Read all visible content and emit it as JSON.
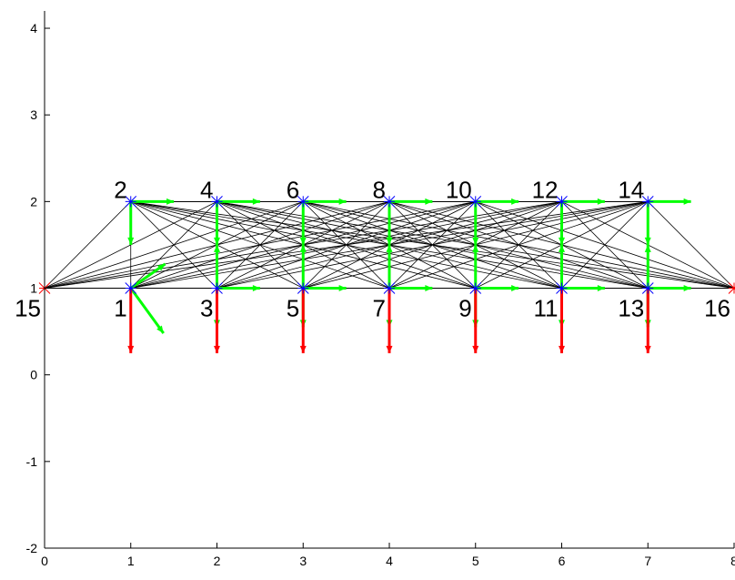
{
  "chart_data": {
    "type": "scatter",
    "title": "",
    "xlabel": "",
    "ylabel": "",
    "xlim": [
      0,
      8
    ],
    "ylim": [
      -2,
      4.2
    ],
    "xticks": [
      0,
      1,
      2,
      3,
      4,
      5,
      6,
      7,
      8
    ],
    "yticks": [
      -2,
      -1,
      0,
      1,
      2,
      3,
      4
    ],
    "xtick_labels": [
      "0",
      "1",
      "2",
      "3",
      "4",
      "5",
      "6",
      "7",
      "8"
    ],
    "ytick_labels": [
      "-2",
      "-1",
      "0",
      "1",
      "2",
      "3",
      "4"
    ],
    "grid": false,
    "nodes": [
      {
        "id": "1",
        "x": 1,
        "y": 1,
        "support": false
      },
      {
        "id": "2",
        "x": 1,
        "y": 2,
        "support": false
      },
      {
        "id": "3",
        "x": 2,
        "y": 1,
        "support": false
      },
      {
        "id": "4",
        "x": 2,
        "y": 2,
        "support": false
      },
      {
        "id": "5",
        "x": 3,
        "y": 1,
        "support": false
      },
      {
        "id": "6",
        "x": 3,
        "y": 2,
        "support": false
      },
      {
        "id": "7",
        "x": 4,
        "y": 1,
        "support": false
      },
      {
        "id": "8",
        "x": 4,
        "y": 2,
        "support": false
      },
      {
        "id": "9",
        "x": 5,
        "y": 1,
        "support": false
      },
      {
        "id": "10",
        "x": 5,
        "y": 2,
        "support": false
      },
      {
        "id": "11",
        "x": 6,
        "y": 1,
        "support": false
      },
      {
        "id": "12",
        "x": 6,
        "y": 2,
        "support": false
      },
      {
        "id": "13",
        "x": 7,
        "y": 1,
        "support": false
      },
      {
        "id": "14",
        "x": 7,
        "y": 2,
        "support": false
      },
      {
        "id": "15",
        "x": 0,
        "y": 1,
        "support": true
      },
      {
        "id": "16",
        "x": 8,
        "y": 1,
        "support": true
      }
    ],
    "loads": [
      {
        "x": 1,
        "y": 1,
        "dx": 0,
        "dy": -0.75
      },
      {
        "x": 2,
        "y": 1,
        "dx": 0,
        "dy": -0.75
      },
      {
        "x": 3,
        "y": 1,
        "dx": 0,
        "dy": -0.75
      },
      {
        "x": 4,
        "y": 1,
        "dx": 0,
        "dy": -0.75
      },
      {
        "x": 5,
        "y": 1,
        "dx": 0,
        "dy": -0.75
      },
      {
        "x": 6,
        "y": 1,
        "dx": 0,
        "dy": -0.75
      },
      {
        "x": 7,
        "y": 1,
        "dx": 0,
        "dy": -0.75
      }
    ],
    "green_vectors": [
      {
        "x": 1,
        "y": 2,
        "dx": 0.5,
        "dy": 0
      },
      {
        "x": 1,
        "y": 2,
        "dx": 0,
        "dy": -0.5
      },
      {
        "x": 2,
        "y": 2,
        "dx": 0.5,
        "dy": 0
      },
      {
        "x": 2,
        "y": 2,
        "dx": 0,
        "dy": -0.5
      },
      {
        "x": 3,
        "y": 2,
        "dx": 0.5,
        "dy": 0
      },
      {
        "x": 3,
        "y": 2,
        "dx": 0,
        "dy": -0.5
      },
      {
        "x": 4,
        "y": 2,
        "dx": 0.5,
        "dy": 0
      },
      {
        "x": 4,
        "y": 2,
        "dx": 0,
        "dy": -0.5
      },
      {
        "x": 5,
        "y": 2,
        "dx": 0.5,
        "dy": 0
      },
      {
        "x": 5,
        "y": 2,
        "dx": 0,
        "dy": -0.5
      },
      {
        "x": 6,
        "y": 2,
        "dx": 0.5,
        "dy": 0
      },
      {
        "x": 6,
        "y": 2,
        "dx": 0,
        "dy": -0.5
      },
      {
        "x": 7,
        "y": 2,
        "dx": 0.5,
        "dy": 0
      },
      {
        "x": 7,
        "y": 2,
        "dx": 0,
        "dy": -0.5
      },
      {
        "x": 1,
        "y": 1,
        "dx": 0.4,
        "dy": 0.28
      },
      {
        "x": 1,
        "y": 1,
        "dx": 0.38,
        "dy": -0.52
      },
      {
        "x": 2,
        "y": 1,
        "dx": 0.5,
        "dy": 0
      },
      {
        "x": 2,
        "y": 1,
        "dx": 0,
        "dy": 0.5
      },
      {
        "x": 2,
        "y": 1,
        "dx": 0,
        "dy": -0.45
      },
      {
        "x": 3,
        "y": 1,
        "dx": 0.5,
        "dy": 0
      },
      {
        "x": 3,
        "y": 1,
        "dx": 0,
        "dy": 0.5
      },
      {
        "x": 3,
        "y": 1,
        "dx": 0,
        "dy": -0.45
      },
      {
        "x": 4,
        "y": 1,
        "dx": 0.5,
        "dy": 0
      },
      {
        "x": 4,
        "y": 1,
        "dx": 0,
        "dy": 0.5
      },
      {
        "x": 4,
        "y": 1,
        "dx": 0,
        "dy": -0.45
      },
      {
        "x": 5,
        "y": 1,
        "dx": 0.5,
        "dy": 0
      },
      {
        "x": 5,
        "y": 1,
        "dx": 0,
        "dy": 0.5
      },
      {
        "x": 5,
        "y": 1,
        "dx": 0,
        "dy": -0.45
      },
      {
        "x": 6,
        "y": 1,
        "dx": 0.5,
        "dy": 0
      },
      {
        "x": 6,
        "y": 1,
        "dx": 0,
        "dy": 0.5
      },
      {
        "x": 6,
        "y": 1,
        "dx": 0,
        "dy": -0.45
      },
      {
        "x": 7,
        "y": 1,
        "dx": 0.5,
        "dy": 0
      },
      {
        "x": 7,
        "y": 1,
        "dx": 0,
        "dy": 0.5
      },
      {
        "x": 7,
        "y": 1,
        "dx": 0,
        "dy": -0.45
      }
    ]
  },
  "colors": {
    "background": "#ffffff",
    "axis": "#000000",
    "member": "#000000",
    "node_marker": "#0000ff",
    "support_marker": "#ff0000",
    "load_arrow": "#ff0000",
    "vector_arrow": "#00ff00"
  }
}
